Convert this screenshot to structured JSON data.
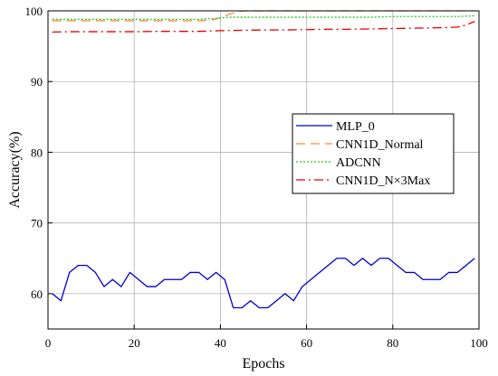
{
  "chart_data": {
    "type": "line",
    "title": "",
    "xlabel": "Epochs",
    "ylabel": "Accuracy(%)",
    "xlim": [
      0,
      100
    ],
    "ylim": [
      55,
      100
    ],
    "xticks": [
      0,
      20,
      40,
      60,
      80,
      100
    ],
    "yticks": [
      60,
      70,
      80,
      90,
      100
    ],
    "grid": true,
    "legend_position": "right",
    "series": [
      {
        "name": "MLP_0",
        "color": "#0000cc",
        "dash": "solid",
        "x": [
          1,
          3,
          5,
          7,
          9,
          11,
          13,
          15,
          17,
          19,
          21,
          23,
          25,
          27,
          29,
          31,
          33,
          35,
          37,
          39,
          41,
          43,
          45,
          47,
          49,
          51,
          53,
          55,
          57,
          59,
          61,
          63,
          65,
          67,
          69,
          71,
          73,
          75,
          77,
          79,
          81,
          83,
          85,
          87,
          89,
          91,
          93,
          95,
          97,
          99
        ],
        "y": [
          60,
          59,
          63,
          64,
          64,
          63,
          61,
          62,
          61,
          63,
          62,
          61,
          61,
          62,
          62,
          62,
          63,
          63,
          62,
          63,
          62,
          58,
          58,
          59,
          58,
          58,
          59,
          60,
          59,
          61,
          62,
          63,
          64,
          65,
          65,
          64,
          65,
          64,
          65,
          65,
          64,
          63,
          63,
          62,
          62,
          62,
          63,
          63,
          64,
          65
        ]
      },
      {
        "name": "CNN1D_Normal",
        "color": "#ff8c3a",
        "dash": "10,6",
        "x": [
          1,
          5,
          10,
          15,
          20,
          25,
          30,
          35,
          38,
          40,
          42,
          44,
          46,
          50,
          55,
          60,
          65,
          70,
          75,
          80,
          85,
          90,
          95,
          99
        ],
        "y": [
          98.6,
          98.6,
          98.6,
          98.6,
          98.6,
          98.6,
          98.6,
          98.6,
          98.7,
          99.0,
          99.5,
          99.9,
          100,
          100,
          100,
          100,
          100,
          100,
          100,
          100,
          100,
          100,
          100,
          100
        ]
      },
      {
        "name": "ADCNN",
        "color": "#1fcc1f",
        "dash": "2,2",
        "x": [
          1,
          5,
          10,
          15,
          20,
          25,
          30,
          35,
          38,
          40,
          42,
          44,
          50,
          55,
          60,
          65,
          70,
          75,
          80,
          85,
          90,
          95,
          99
        ],
        "y": [
          98.8,
          98.8,
          98.8,
          98.8,
          98.8,
          98.8,
          98.8,
          98.8,
          98.9,
          99.0,
          99.1,
          99.1,
          99.1,
          99.1,
          99.1,
          99.1,
          99.1,
          99.1,
          99.2,
          99.2,
          99.2,
          99.2,
          99.3
        ]
      },
      {
        "name": "CNN1D_N×3Max",
        "color": "#e60000",
        "dash": "10,4,2,4",
        "x": [
          1,
          5,
          10,
          15,
          20,
          25,
          30,
          35,
          40,
          45,
          50,
          55,
          60,
          65,
          70,
          75,
          80,
          85,
          90,
          95,
          97,
          99
        ],
        "y": [
          97.0,
          97.05,
          97.05,
          97.05,
          97.05,
          97.1,
          97.1,
          97.1,
          97.2,
          97.25,
          97.3,
          97.3,
          97.35,
          97.4,
          97.4,
          97.45,
          97.5,
          97.55,
          97.6,
          97.7,
          98.0,
          98.5
        ]
      }
    ]
  }
}
